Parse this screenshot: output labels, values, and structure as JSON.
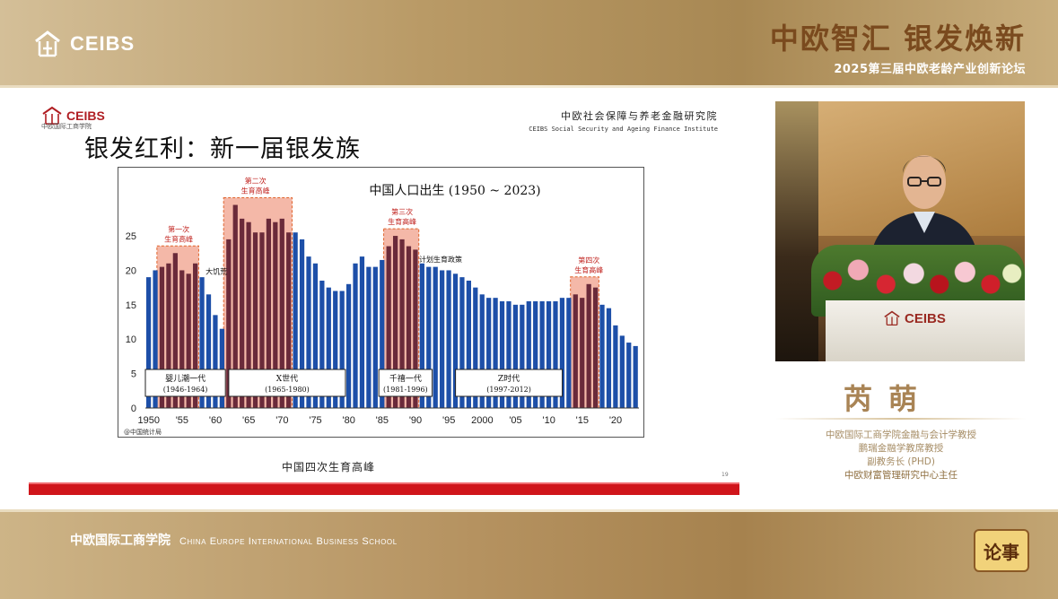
{
  "header": {
    "logo_text": "CEIBS",
    "event_title": "中欧智汇 银发焕新",
    "event_subtitle": "2025第三届中欧老龄产业创新论坛"
  },
  "slide": {
    "logo_text": "CEIBS",
    "logo_sub": "中欧国际工商学院",
    "institute_cn": "中欧社会保障与养老金融研究院",
    "institute_en": "CEIBS Social Security and Ageing Finance Institute",
    "title": "银发红利：新一届银发族",
    "caption": "中国四次生育高峰",
    "page_number": "19"
  },
  "chart_data": {
    "type": "bar",
    "title": "中国人口出生 (1950 ~ 2023)",
    "source": "@中国统计局",
    "x": [
      1950,
      1951,
      1952,
      1953,
      1954,
      1955,
      1956,
      1957,
      1958,
      1959,
      1960,
      1961,
      1962,
      1963,
      1964,
      1965,
      1966,
      1967,
      1968,
      1969,
      1970,
      1971,
      1972,
      1973,
      1974,
      1975,
      1976,
      1977,
      1978,
      1979,
      1980,
      1981,
      1982,
      1983,
      1984,
      1985,
      1986,
      1987,
      1988,
      1989,
      1990,
      1991,
      1992,
      1993,
      1994,
      1995,
      1996,
      1997,
      1998,
      1999,
      2000,
      2001,
      2002,
      2003,
      2004,
      2005,
      2006,
      2007,
      2008,
      2009,
      2010,
      2011,
      2012,
      2013,
      2014,
      2015,
      2016,
      2017,
      2018,
      2019,
      2020,
      2021,
      2022,
      2023
    ],
    "values": [
      19,
      20,
      20.5,
      21,
      22.5,
      20,
      19.5,
      21,
      19,
      16.5,
      13.5,
      11.5,
      24.5,
      29.5,
      27.5,
      27,
      25.5,
      25.5,
      27.5,
      27,
      27.5,
      25.5,
      25.5,
      24.5,
      22,
      21,
      18.5,
      17.5,
      17,
      17,
      18,
      21,
      22,
      20.5,
      20.5,
      21.5,
      23.5,
      25,
      24.5,
      23.5,
      23,
      21,
      20.5,
      20.5,
      20,
      20,
      19.5,
      19,
      18.5,
      17.5,
      16.5,
      16,
      16,
      15.5,
      15.5,
      15,
      15,
      15.5,
      15.5,
      15.5,
      15.5,
      15.5,
      16,
      16,
      16.5,
      16,
      18,
      17.5,
      15,
      14.5,
      12,
      10.5,
      9.5,
      9
    ],
    "xticks": [
      "1950",
      "'55",
      "'60",
      "'65",
      "'70",
      "'75",
      "'80",
      "'85",
      "'90",
      "'95",
      "2000",
      "'05",
      "'10",
      "'15",
      "'20"
    ],
    "xtick_years": [
      1950,
      1955,
      1960,
      1965,
      1970,
      1975,
      1980,
      1985,
      1990,
      1995,
      2000,
      2005,
      2010,
      2015,
      2020
    ],
    "yticks": [
      "0",
      "5",
      "10",
      "15",
      "20",
      "25"
    ],
    "ylim": [
      0,
      31
    ],
    "peaks": [
      {
        "label": "第一次生育高峰",
        "line1": "第一次",
        "line2": "生育高峰",
        "start": 1952,
        "end": 1957,
        "label_year": 1954.5
      },
      {
        "label": "第二次生育高峰",
        "line1": "第二次",
        "line2": "生育高峰",
        "start": 1962,
        "end": 1971,
        "label_year": 1966
      },
      {
        "label": "第三次生育高峰",
        "line1": "第三次",
        "line2": "生育高峰",
        "start": 1986,
        "end": 1990,
        "label_year": 1988
      },
      {
        "label": "第四次生育高峰",
        "line1": "第四次",
        "line2": "生育高峰",
        "start": 2014,
        "end": 2017,
        "label_year": 2016
      }
    ],
    "annotations": [
      {
        "text": "大饥荒",
        "year": 1958.5,
        "value": 19.5
      },
      {
        "text": "计划生育政策",
        "year": 1990.5,
        "value": 21.2
      }
    ],
    "generations": [
      {
        "name": "婴儿潮一代",
        "range": "(1946-1964)",
        "start": 1950,
        "end": 1962
      },
      {
        "name": "X世代",
        "range": "(1965-1980)",
        "start": 1962.5,
        "end": 1980
      },
      {
        "name": "千禧一代",
        "range": "(1981-1996)",
        "start": 1985,
        "end": 1993
      },
      {
        "name": "Z时代",
        "range": "(1997-2012)",
        "start": 1996.5,
        "end": 2012.5
      }
    ],
    "colors": {
      "bar": "#1d4fa8",
      "peak_fill": "#f4b8a8",
      "peak_bar": "#6a2a3a"
    }
  },
  "speaker": {
    "podium_logo": "CEIBS",
    "name": "芮萌",
    "titles": [
      "中欧国际工商学院金融与会计学教授",
      "鹏瑞金融学教席教授",
      "副教务长 (PHD)",
      "中欧财富管理研究中心主任"
    ]
  },
  "footer": {
    "school_cn": "中欧国际工商学院",
    "school_en": "China Europe International Business School",
    "badge": "论事"
  }
}
